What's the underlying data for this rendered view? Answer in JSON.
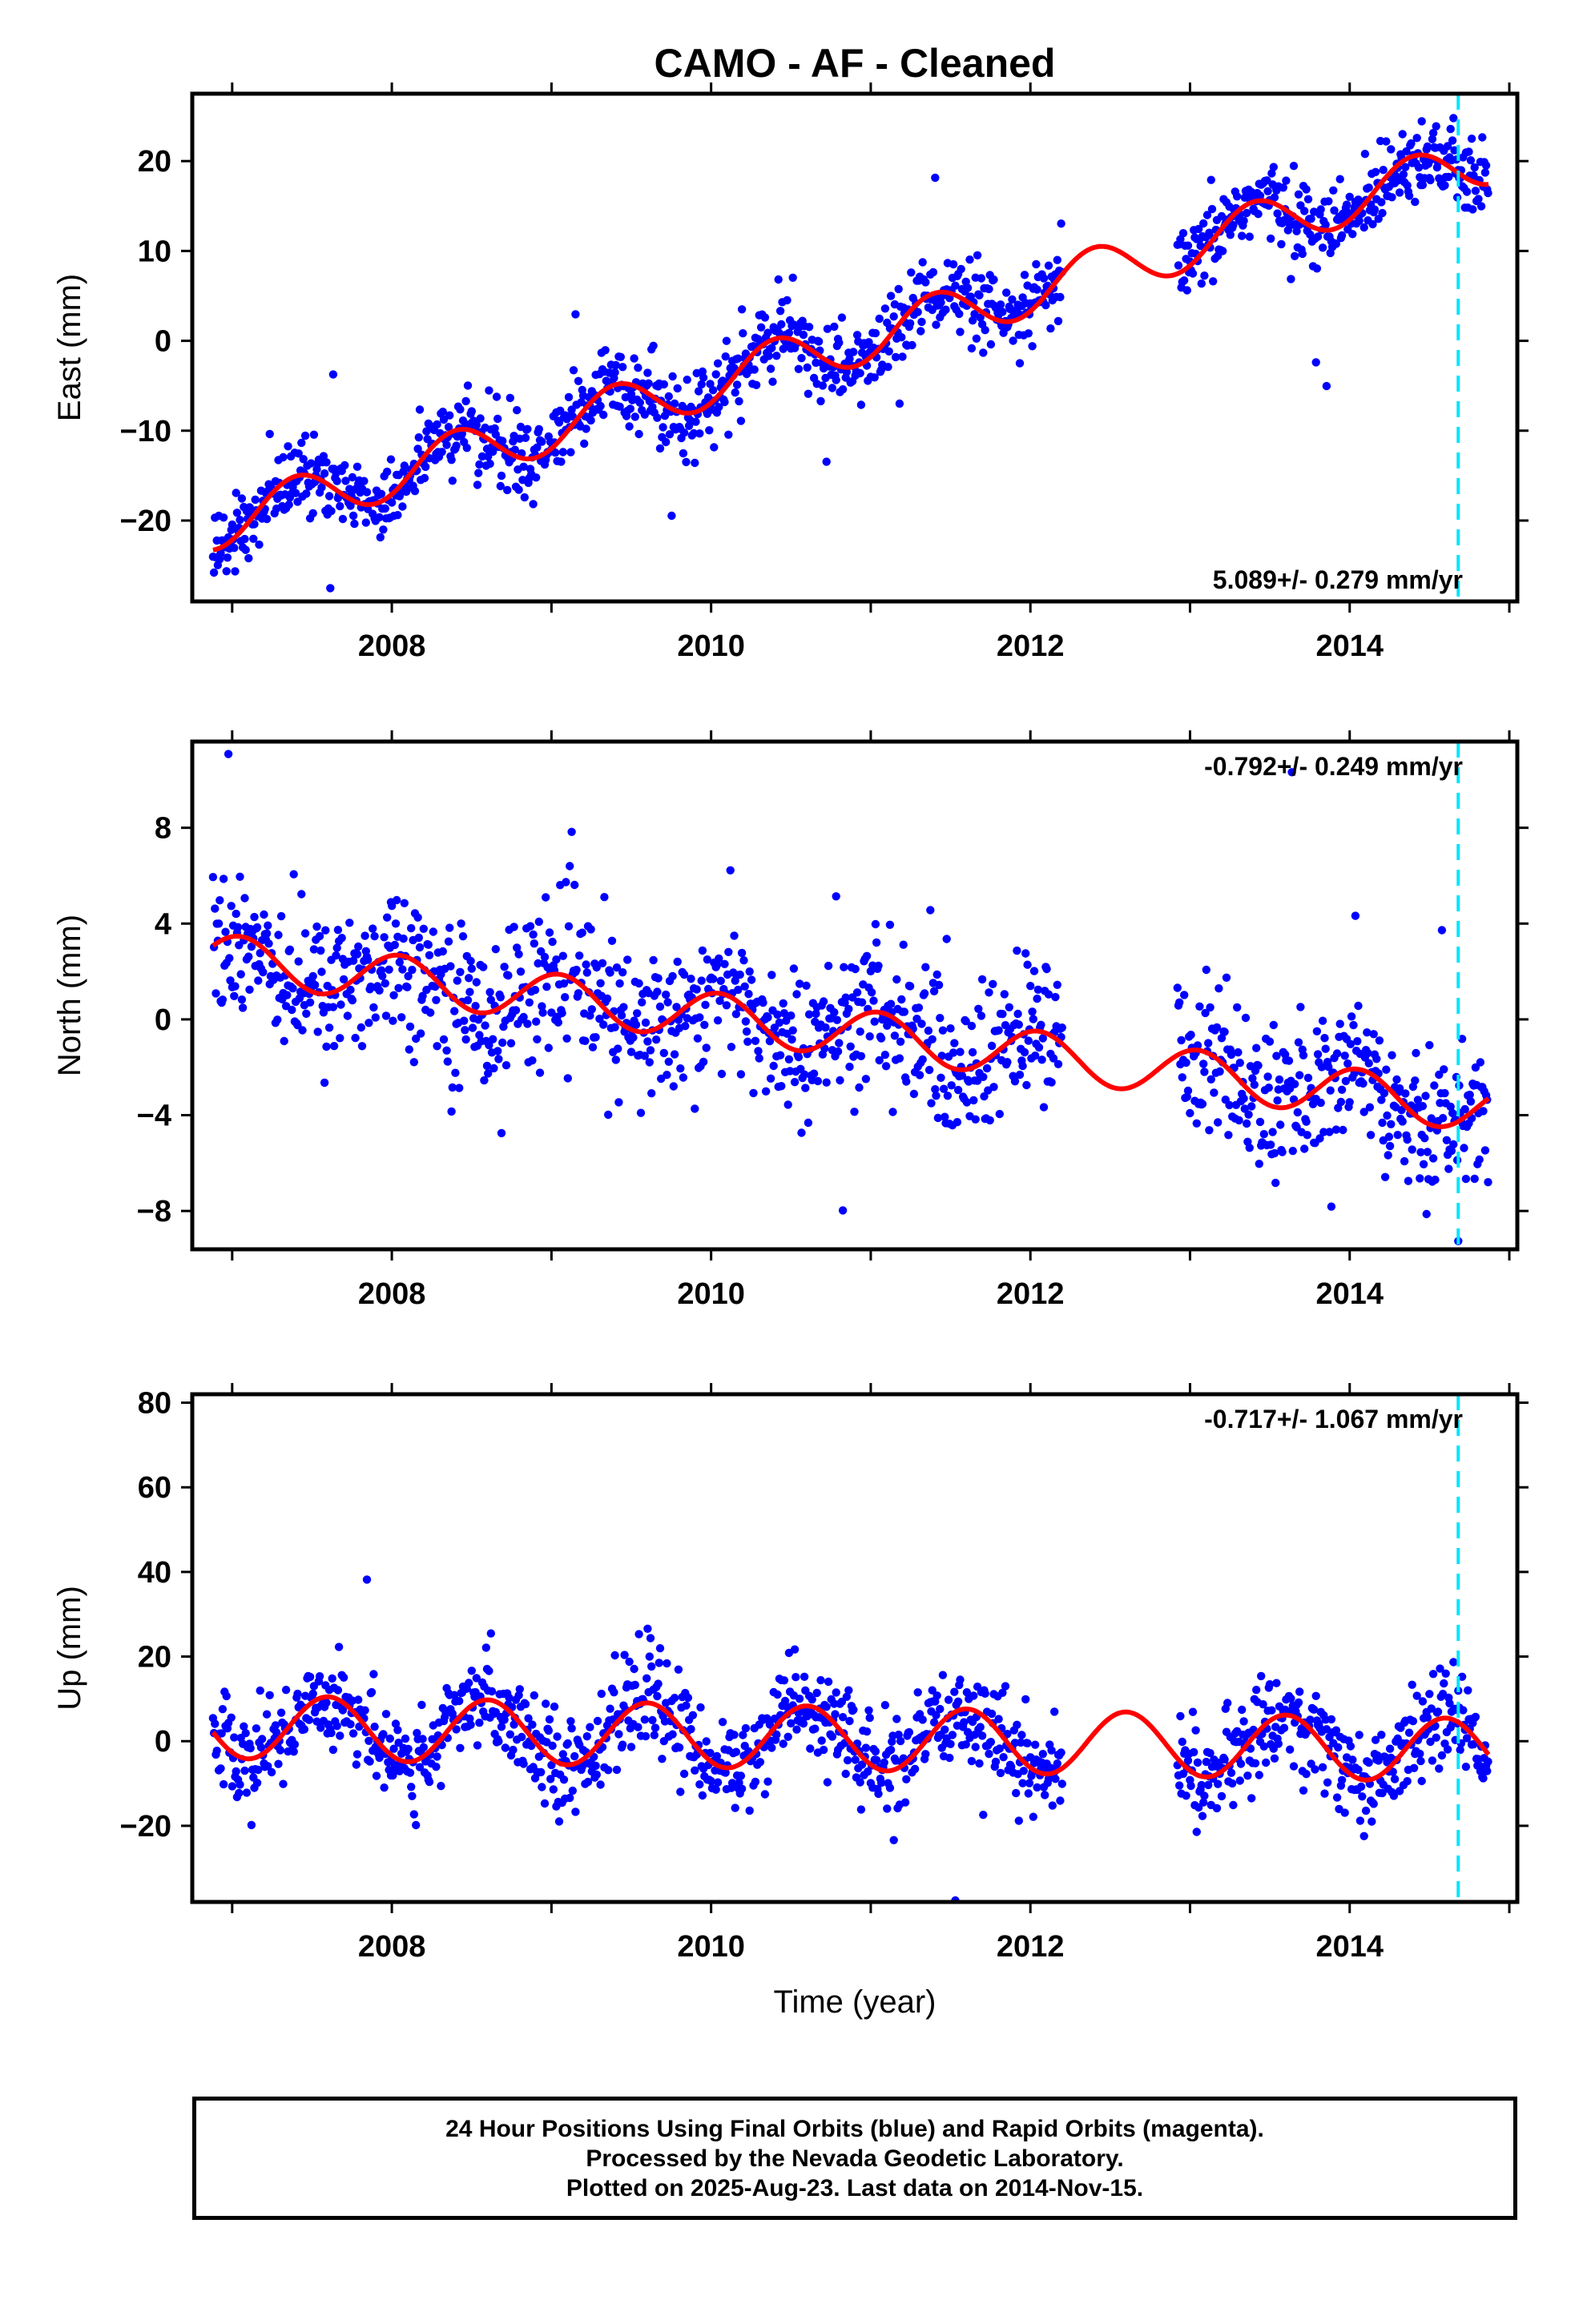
{
  "title": "CAMO  - AF - Cleaned",
  "xlabel": "Time (year)",
  "colors": {
    "points": "#0000ff",
    "fit": "#ff0000",
    "marker": "#00e5ff",
    "axes": "#000000"
  },
  "footer": {
    "line1": "24 Hour Positions Using Final Orbits (blue) and Rapid Orbits (magenta).",
    "line2": "Processed by the Nevada Geodetic Laboratory.",
    "line3": "Plotted on 2025-Aug-23. Last data on 2014-Nov-15."
  },
  "chart_data": [
    {
      "type": "scatter",
      "component": "east",
      "ylabel": "East (mm)",
      "velocity_label": "5.089+/- 0.279 mm/yr",
      "xlim": [
        2006.75,
        2015.05
      ],
      "ylim": [
        -29,
        27.5
      ],
      "x_ticks": [
        2008,
        2010,
        2012,
        2014
      ],
      "y_ticks": [
        -20,
        -10,
        0,
        10,
        20
      ],
      "data_start": 2006.88,
      "data_gap": [
        2012.2,
        2012.92
      ],
      "data_end": 2014.87,
      "rate": 5.089,
      "value_at_start": -20.5,
      "seasonal_amplitude": 2.8,
      "peak_phase": 0.4,
      "scatter": 2.2,
      "marker_line_x": 2014.68,
      "fit_series": "red sinusoid plus trend"
    },
    {
      "type": "scatter",
      "component": "north",
      "ylabel": "North (mm)",
      "velocity_label": "-0.792+/- 0.249 mm/yr",
      "xlim": [
        2006.75,
        2015.05
      ],
      "ylim": [
        -9.6,
        11.6
      ],
      "x_ticks": [
        2008,
        2010,
        2012,
        2014
      ],
      "y_ticks": [
        -8,
        -4,
        0,
        4,
        8
      ],
      "data_start": 2006.88,
      "data_gap": [
        2012.2,
        2012.92
      ],
      "data_end": 2014.87,
      "rate": -0.792,
      "value_at_start": 2.6,
      "seasonal_amplitude": 1.0,
      "peak_phase": 0.05,
      "scatter": 1.6,
      "marker_line_x": 2014.68,
      "fit_series": "red sinusoid plus trend"
    },
    {
      "type": "scatter",
      "component": "up",
      "ylabel": "Up (mm)",
      "velocity_label": "-0.717+/- 1.067 mm/yr",
      "xlim": [
        2006.75,
        2015.05
      ],
      "ylim": [
        -38,
        82
      ],
      "x_ticks": [
        2008,
        2010,
        2012,
        2014
      ],
      "y_ticks": [
        -20,
        0,
        20,
        40,
        60,
        80
      ],
      "data_start": 2006.88,
      "data_gap": [
        2012.2,
        2012.92
      ],
      "data_end": 2014.87,
      "rate": -0.717,
      "value_at_start": 3.5,
      "seasonal_amplitude": 7.5,
      "peak_phase": 0.6,
      "scatter": 5.5,
      "marker_line_x": 2014.68,
      "fit_series": "red sinusoid plus trend"
    }
  ]
}
